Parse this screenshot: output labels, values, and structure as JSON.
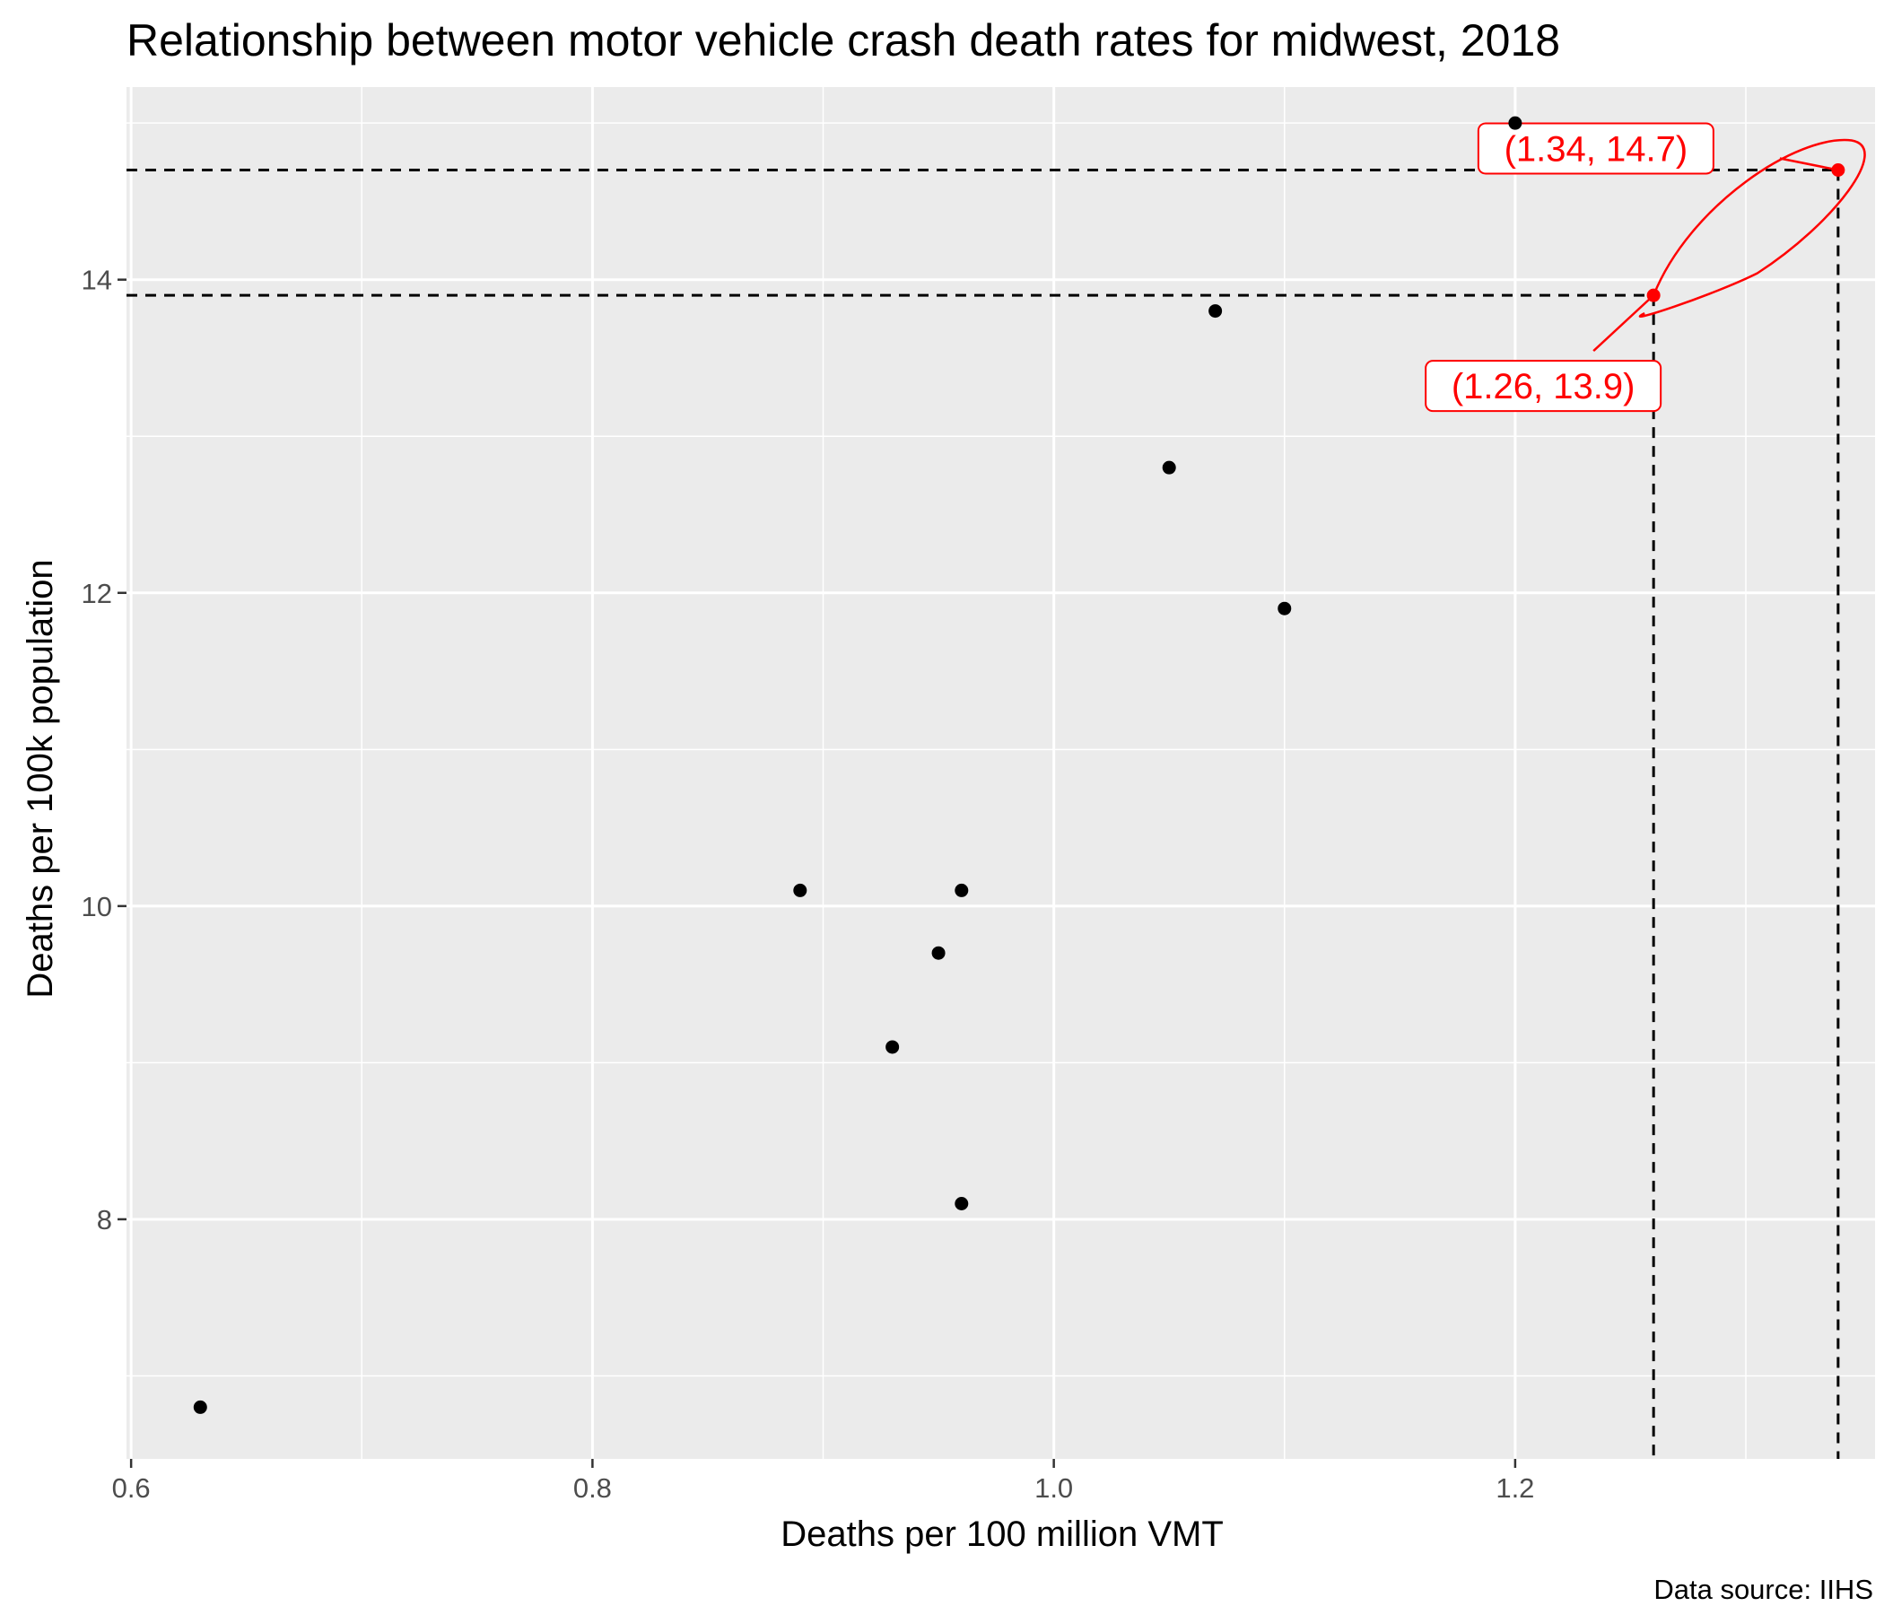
{
  "chart_data": {
    "type": "scatter",
    "title": "Relationship between motor vehicle crash death rates for midwest, 2018",
    "xlabel": "Deaths per 100 million VMT",
    "ylabel": "Deaths per 100k population",
    "caption": "Data source: IIHS",
    "xlim": [
      0.598,
      1.356
    ],
    "ylim": [
      6.47,
      15.23
    ],
    "x_ticks": [
      0.6,
      0.8,
      1.0,
      1.2
    ],
    "x_tick_labels": [
      "0.6",
      "0.8",
      "1.0",
      "1.2"
    ],
    "x_minor_breaks": [
      0.7,
      0.9,
      1.1,
      1.3
    ],
    "y_ticks": [
      8,
      10,
      12,
      14
    ],
    "y_tick_labels": [
      "8",
      "10",
      "12",
      "14"
    ],
    "y_minor_breaks": [
      7,
      9,
      11,
      13,
      15
    ],
    "grid": true,
    "panel_background": "#ebebeb",
    "grid_color": "#ffffff",
    "point_color": "#000000",
    "highlight_color": "#ff0000",
    "points": [
      {
        "x": 0.63,
        "y": 6.8
      },
      {
        "x": 0.89,
        "y": 10.1
      },
      {
        "x": 0.93,
        "y": 9.1
      },
      {
        "x": 0.95,
        "y": 9.7
      },
      {
        "x": 0.96,
        "y": 10.1
      },
      {
        "x": 0.96,
        "y": 8.1
      },
      {
        "x": 1.05,
        "y": 12.8
      },
      {
        "x": 1.07,
        "y": 13.8
      },
      {
        "x": 1.1,
        "y": 11.9
      },
      {
        "x": 1.2,
        "y": 15.0
      },
      {
        "x": 1.26,
        "y": 13.9,
        "highlight": true
      },
      {
        "x": 1.34,
        "y": 14.7,
        "highlight": true
      }
    ],
    "reference_lines": [
      {
        "x": 1.26,
        "y": 13.9
      },
      {
        "x": 1.34,
        "y": 14.7
      }
    ],
    "annotations": [
      {
        "text": "(1.34, 14.7)",
        "x": 1.34,
        "y": 14.7
      },
      {
        "text": "(1.26, 13.9)",
        "x": 1.26,
        "y": 13.9
      }
    ]
  }
}
